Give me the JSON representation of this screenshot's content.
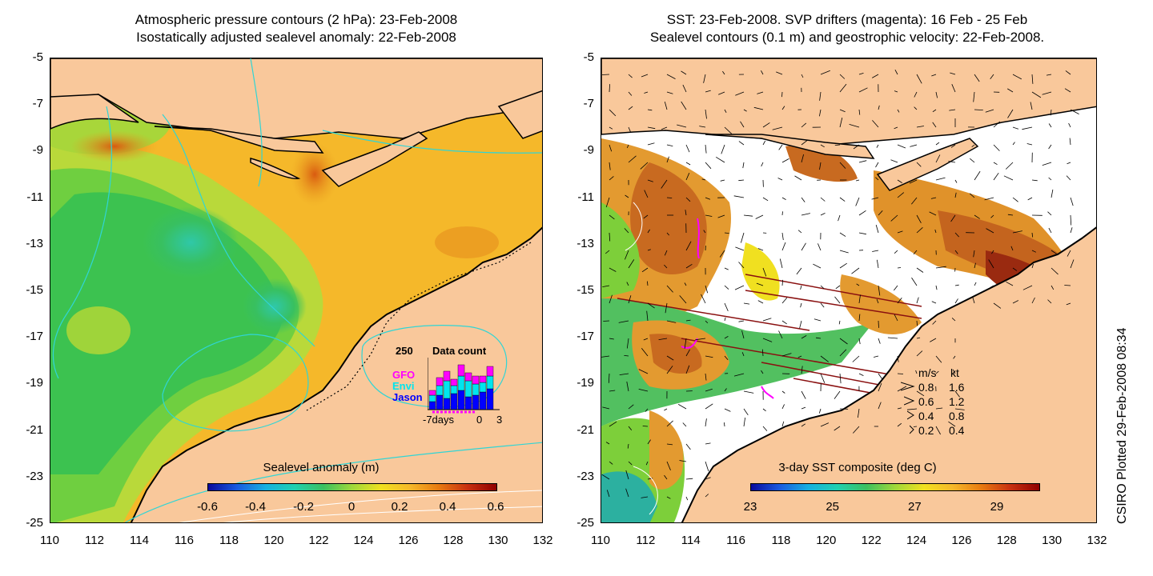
{
  "left_panel": {
    "title_line1": "Atmospheric pressure contours (2 hPa): 23-Feb-2008",
    "title_line2": "Isostatically adjusted sealevel anomaly: 22-Feb-2008",
    "y_ticks": [
      "-5",
      "-7",
      "-9",
      "-11",
      "-13",
      "-15",
      "-17",
      "-19",
      "-21",
      "-23",
      "-25"
    ],
    "x_ticks": [
      "110",
      "112",
      "114",
      "116",
      "118",
      "120",
      "122",
      "124",
      "126",
      "128",
      "130",
      "132"
    ],
    "colorbar": {
      "title": "Sealevel anomaly (m)",
      "ticks": [
        "-0.6",
        "-0.4",
        "-0.2",
        "0",
        "0.2",
        "0.4",
        "0.6"
      ]
    },
    "inset": {
      "count_label": "250",
      "title": "Data count",
      "legend": [
        {
          "label": "GFO",
          "color": "#ff00ff"
        },
        {
          "label": "Envi",
          "color": "#00e5ee"
        },
        {
          "label": "Jason",
          "color": "#0000ff"
        }
      ],
      "x_labels": [
        "-7days",
        "0",
        "3"
      ]
    }
  },
  "right_panel": {
    "title_line1": "SST: 23-Feb-2008. SVP drifters (magenta): 16 Feb - 25 Feb",
    "title_line2": "Sealevel contours (0.1 m) and geostrophic velocity: 22-Feb-2008.",
    "y_ticks": [
      "-5",
      "-7",
      "-9",
      "-11",
      "-13",
      "-15",
      "-17",
      "-19",
      "-21",
      "-23",
      "-25"
    ],
    "x_ticks": [
      "110",
      "112",
      "114",
      "116",
      "118",
      "120",
      "122",
      "124",
      "126",
      "128",
      "130",
      "132"
    ],
    "colorbar": {
      "title": "3-day SST composite (deg C)",
      "ticks": [
        "23",
        "25",
        "27",
        "29"
      ]
    },
    "velocity_legend": {
      "header_ms": "m/s",
      "header_kt": "kt",
      "rows": [
        {
          "ms": "0.8",
          "kt": "1.6"
        },
        {
          "ms": "0.6",
          "kt": "1.2"
        },
        {
          "ms": "0.4",
          "kt": "0.8"
        },
        {
          "ms": "0.2",
          "kt": "0.4"
        }
      ]
    }
  },
  "side_note": "CSIRO Plotted 29-Feb-2008 08:34",
  "colors": {
    "land": "#f9c89b",
    "coast": "#000000",
    "pressure_contour": "#30d5d5"
  }
}
